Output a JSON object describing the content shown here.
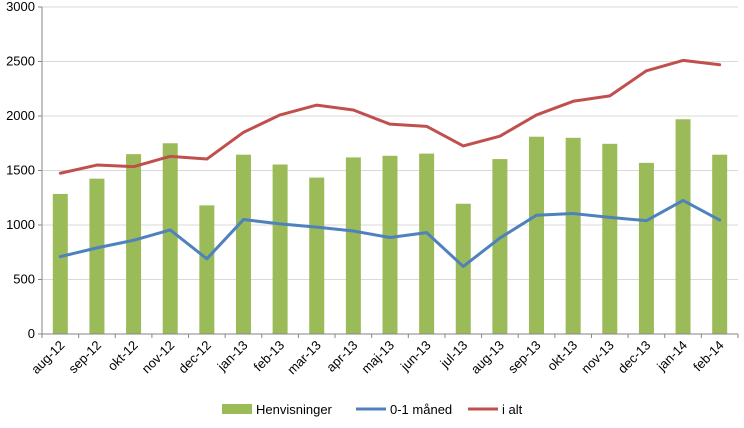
{
  "chart_data": {
    "type": "bar+line",
    "title": "",
    "xlabel": "",
    "ylabel": "",
    "ylim": [
      0,
      3000
    ],
    "yticks": [
      0,
      500,
      1000,
      1500,
      2000,
      2500,
      3000
    ],
    "grid": true,
    "legend_position": "bottom",
    "categories": [
      "aug-12",
      "sep-12",
      "okt-12",
      "nov-12",
      "dec-12",
      "jan-13",
      "feb-13",
      "mar-13",
      "apr-13",
      "maj-13",
      "jun-13",
      "jul-13",
      "aug-13",
      "sep-13",
      "okt-13",
      "nov-13",
      "dec-13",
      "jan-14",
      "feb-14"
    ],
    "series": [
      {
        "name": "Henvisninger",
        "kind": "bar",
        "color": "#9bbb59",
        "values": [
          1285,
          1425,
          1650,
          1750,
          1180,
          1645,
          1555,
          1435,
          1620,
          1635,
          1655,
          1195,
          1605,
          1810,
          1800,
          1745,
          1570,
          1970,
          1645
        ]
      },
      {
        "name": "0-1 måned",
        "kind": "line",
        "color": "#4f81bd",
        "values": [
          710,
          790,
          860,
          955,
          690,
          1050,
          1010,
          980,
          945,
          885,
          930,
          620,
          880,
          1090,
          1105,
          1070,
          1040,
          1225,
          1045
        ]
      },
      {
        "name": "i alt",
        "kind": "line",
        "color": "#c0504d",
        "values": [
          1475,
          1550,
          1535,
          1630,
          1605,
          1850,
          2010,
          2100,
          2055,
          1925,
          1905,
          1725,
          1815,
          2010,
          2135,
          2185,
          2415,
          2510,
          2470
        ]
      }
    ]
  }
}
